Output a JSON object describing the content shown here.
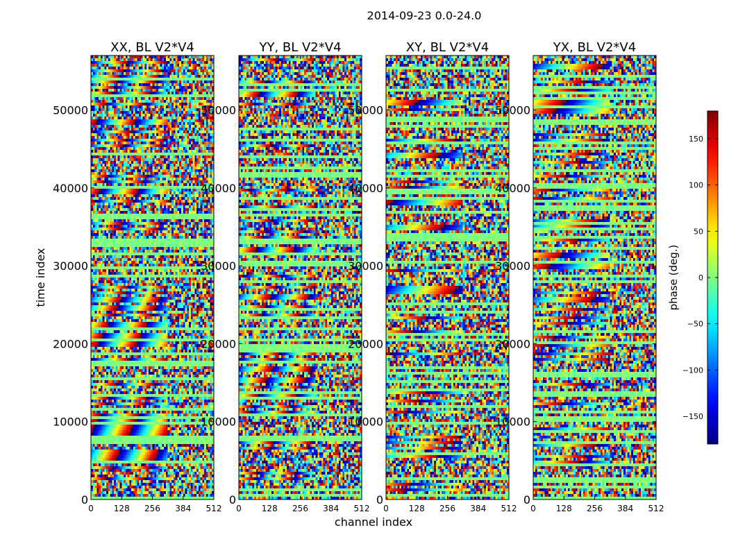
{
  "suptitle": "2014-09-23 0.0-24.0",
  "chart_data": [
    {
      "type": "heatmap",
      "title": "XX, BL V2*V4",
      "xlabel": "channel index",
      "ylabel": "time index",
      "xlim": [
        0,
        512
      ],
      "ylim": [
        0,
        57000
      ],
      "xticks": [
        0,
        128,
        256,
        384,
        512
      ],
      "yticks": [
        0,
        10000,
        20000,
        30000,
        40000,
        50000
      ]
    },
    {
      "type": "heatmap",
      "title": "YY, BL V2*V4",
      "xlim": [
        0,
        512
      ],
      "ylim": [
        0,
        57000
      ],
      "xticks": [
        0,
        128,
        256,
        384,
        512
      ],
      "yticks": [
        0,
        10000,
        20000,
        30000,
        40000,
        50000
      ]
    },
    {
      "type": "heatmap",
      "title": "XY, BL V2*V4",
      "xlim": [
        0,
        512
      ],
      "ylim": [
        0,
        57000
      ],
      "xticks": [
        0,
        128,
        256,
        384,
        512
      ],
      "yticks": [
        0,
        10000,
        20000,
        30000,
        40000,
        50000
      ]
    },
    {
      "type": "heatmap",
      "title": "YX, BL V2*V4",
      "xlim": [
        0,
        512
      ],
      "ylim": [
        0,
        57000
      ],
      "xticks": [
        0,
        128,
        256,
        384,
        512
      ],
      "yticks": [
        0,
        10000,
        20000,
        30000,
        40000,
        50000
      ]
    }
  ],
  "colorbar": {
    "label": "phase (deg.)",
    "colormap": "jet",
    "range": [
      -180,
      180
    ],
    "ticks": [
      -150,
      -100,
      -50,
      0,
      50,
      100,
      150
    ],
    "tick_labels": [
      "−150",
      "−100",
      "−50",
      "0",
      "50",
      "100",
      "150"
    ]
  }
}
